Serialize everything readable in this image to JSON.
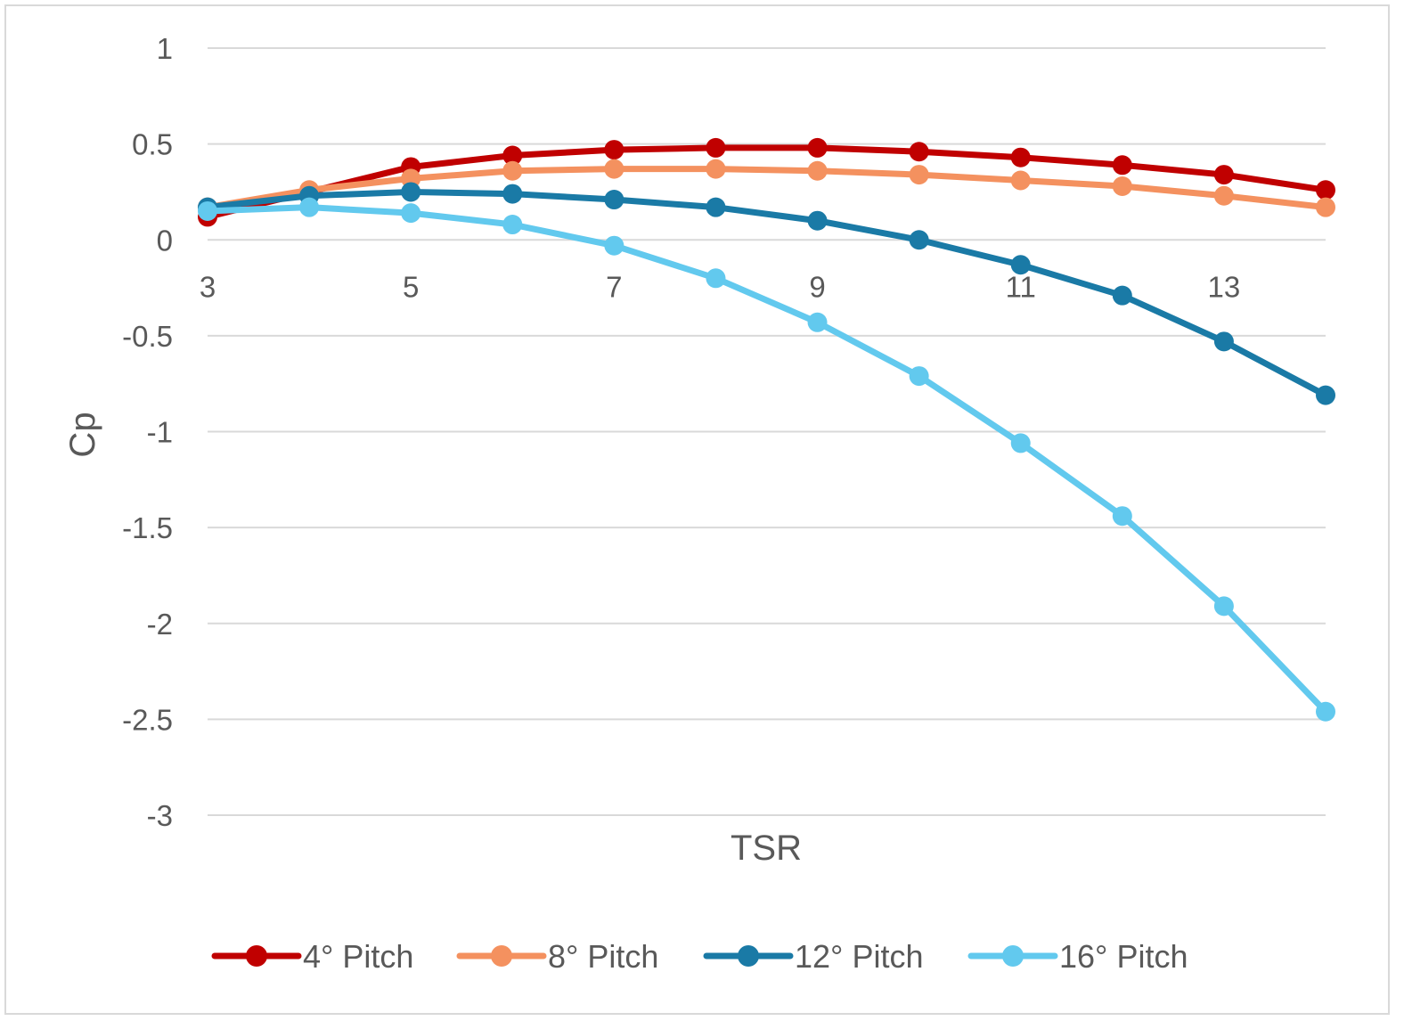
{
  "chart_data": {
    "type": "line",
    "title": "",
    "xlabel": "TSR",
    "ylabel": "Cp",
    "x": [
      3,
      4,
      5,
      6,
      7,
      8,
      9,
      10,
      11,
      12,
      13,
      14
    ],
    "x_tick_labels": [
      "3",
      "5",
      "7",
      "9",
      "11",
      "13"
    ],
    "x_ticks": [
      3,
      5,
      7,
      9,
      11,
      13
    ],
    "xlim": [
      3,
      14
    ],
    "ylim": [
      -3,
      1
    ],
    "y_ticks": [
      1,
      0.5,
      0,
      -0.5,
      -1,
      -1.5,
      -2,
      -2.5,
      -3
    ],
    "y_tick_labels": [
      "1",
      "0.5",
      "0",
      "-0.5",
      "-1",
      "-1.5",
      "-2",
      "-2.5",
      "-3"
    ],
    "grid": true,
    "legend_position": "bottom",
    "series": [
      {
        "name": "4° Pitch",
        "color": "#c00000",
        "values": [
          0.12,
          0.25,
          0.38,
          0.44,
          0.47,
          0.48,
          0.48,
          0.46,
          0.43,
          0.39,
          0.34,
          0.26
        ]
      },
      {
        "name": "8° Pitch",
        "color": "#f4915f",
        "values": [
          0.17,
          0.26,
          0.32,
          0.36,
          0.37,
          0.37,
          0.36,
          0.34,
          0.31,
          0.28,
          0.23,
          0.17
        ]
      },
      {
        "name": "12° Pitch",
        "color": "#1a7aa6",
        "values": [
          0.17,
          0.23,
          0.25,
          0.24,
          0.21,
          0.17,
          0.1,
          0.0,
          -0.13,
          -0.29,
          -0.53,
          -0.81
        ]
      },
      {
        "name": "16° Pitch",
        "color": "#62c9ee",
        "values": [
          0.15,
          0.17,
          0.14,
          0.08,
          -0.03,
          -0.2,
          -0.43,
          -0.71,
          -1.06,
          -1.44,
          -1.91,
          -2.46
        ]
      }
    ]
  }
}
